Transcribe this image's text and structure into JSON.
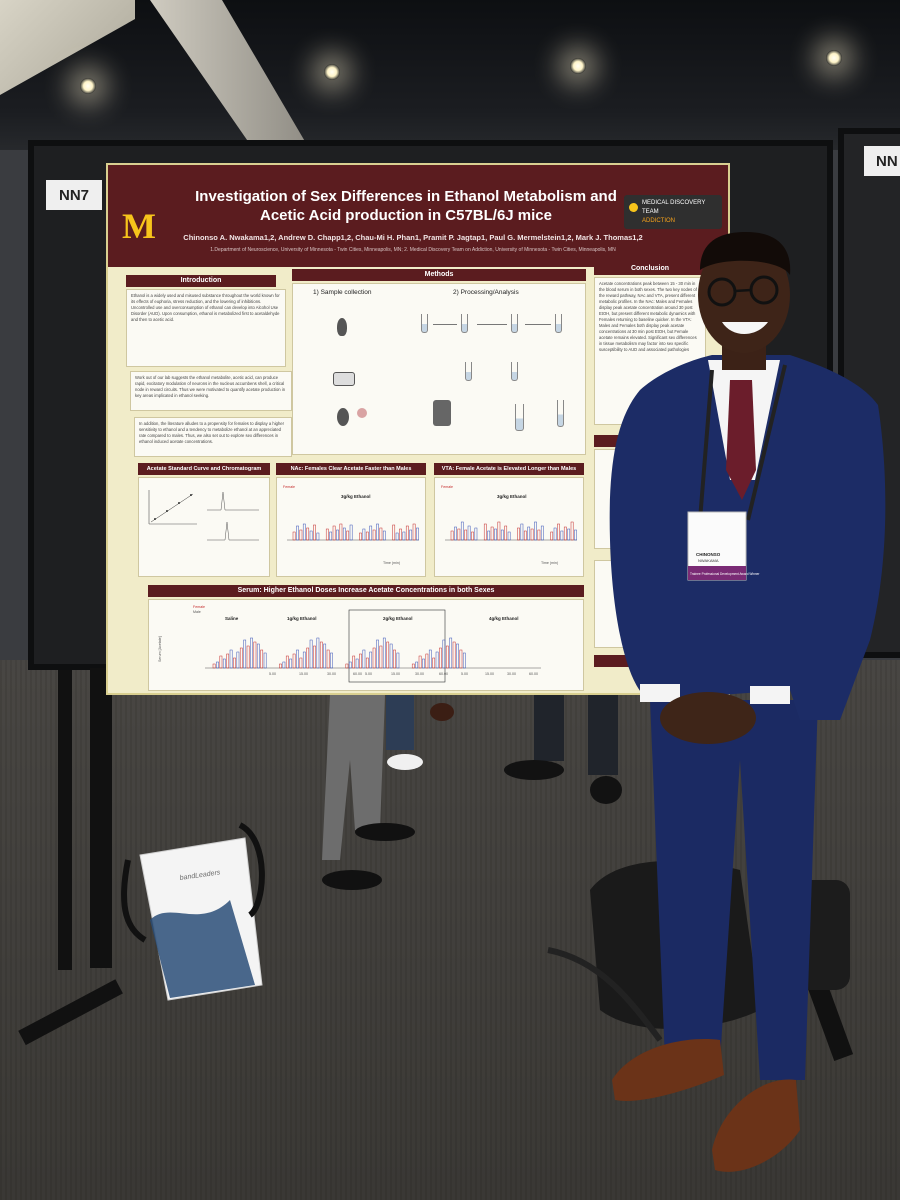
{
  "booth": {
    "board_number": "NN7",
    "neighbor_board_number": "NN"
  },
  "poster": {
    "title": "Investigation of Sex Differences in Ethanol Metabolism and Acetic Acid production in C57BL/6J mice",
    "authors": "Chinonso A. Nwakama1,2, Andrew D. Chapp1,2, Chau-Mi H. Phan1, Pramit P. Jagtap1, Paul G. Mermelstein1,2, Mark J. Thomas1,2",
    "affiliations": "1.Department of Neuroscience, University of Minnesota - Twin Cities, Minneapolis, MN; 2. Medical Discovery Team on Addiction, University of Minnesota - Twin Cities, Minneapolis, MN",
    "logo_line1": "MEDICAL DISCOVERY TEAM",
    "logo_line2": "ADDICTION",
    "sections": {
      "introduction": "Introduction",
      "methods": "Methods",
      "conclusion": "Conclusion",
      "acetate_curve": "Acetate Standard Curve and Chromatogram",
      "nac": "NAc: Females Clear Acetate Faster than Males",
      "vta": "VTA: Female Acetate is Elevated Longer than Males",
      "serum": "Serum: Higher Ethanol Doses Increase Acetate Concentrations in both Sexes"
    },
    "methods_sub": {
      "sample": "1) Sample collection",
      "processing": "2) Processing/Analysis"
    },
    "intro_text_1": "Ethanol is a widely used and misused substance throughout the world known for its effects of euphoria, stress reduction, and the lowering of inhibitions. Uncontrolled use and overconsumption of ethanol can develop into Alcohol Use Disorder (AUD). Upon consumption, ethanol is metabolized first to acetaldehyde and then to acetic acid.",
    "intro_text_2": "Work out of our lab suggests the ethanol metabolite, acetic acid, can produce rapid, excitatory modulation of neurons in the nucleus accumbens shell, a critical node in reward circuits. Thus we were motivated to quantify acetate production in key areas implicated in ethanol seeking.",
    "intro_text_3": "In addition, the literature alludes to a propensity for females to display a higher sensitivity to ethanol and a tendency to metabolize ethanol at an appreciated rate compared to males. Thus, we also set out to explore sex differences in ethanol induced acetate concentrations.",
    "conclusion_text": "Acetate concentrations peak between 15 - 30 min in the blood serum in both sexes. The two key nodes of the reward pathway, NAc and VTA, present different metabolic profiles. In the NAc: Males and Females display peak acetate concentration around 30 post EtOH, but present different metabolic dynamics with Females returning to baseline quicker. In the VTA: Males and Females both display peak acetate concentrations at 30 min post EtOH, but Female acetate remains elevated. Significant sex differences in tissue metabolism may factor into sex specific susceptibility to AUD and associated pathologies",
    "serum_panels": [
      "Saline",
      "1g/kg Ethanol",
      "2g/kg Ethanol",
      "4g/kg Ethanol"
    ],
    "legend_female": "Female",
    "legend_male": "Male",
    "time_label": "Time (min)",
    "serum_ylabel": "Serum [Acetate]",
    "serum_ticks": [
      "5.00",
      "15.00",
      "30.00",
      "60.00"
    ],
    "nac_panels": [
      "3g/kg Ethanol"
    ],
    "vta_panels": [
      "3g/kg Ethanol"
    ]
  },
  "badge": {
    "name": "CHINONSO",
    "surname": "NWAKAMA",
    "ribbon": "Trainee Professional Development Award Winner"
  },
  "bag": {
    "brand": "bandLeaders"
  },
  "colors": {
    "poster_header": "#5b1c1f",
    "poster_background": "#f1ecc9",
    "umn_gold": "#f7c41b",
    "suit": "#1b2a63",
    "tie": "#6b1d2b",
    "female_series": "#c42a2a",
    "male_series": "#3a54b8"
  }
}
